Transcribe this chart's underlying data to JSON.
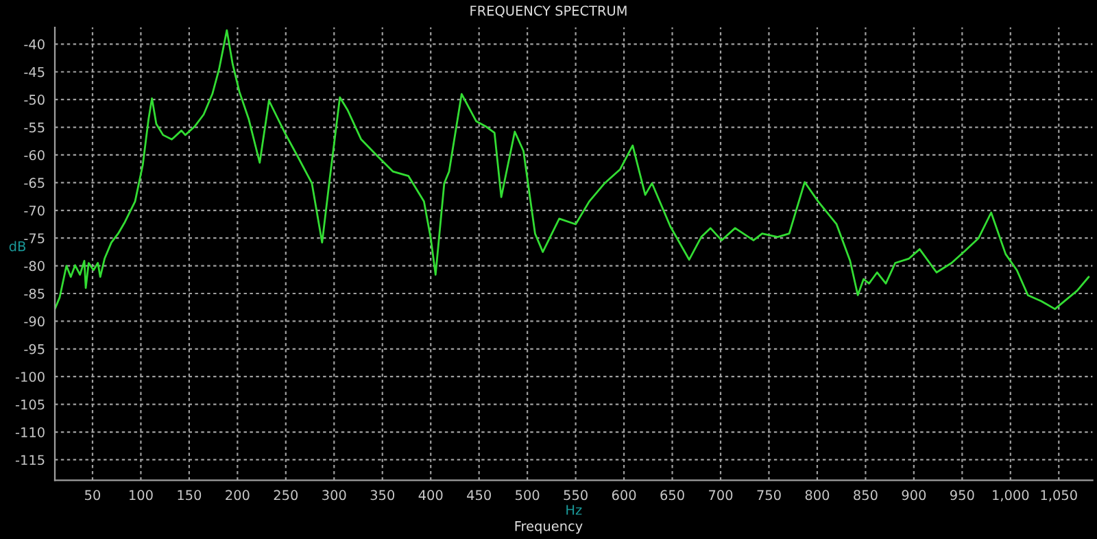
{
  "chart_data": {
    "type": "line",
    "title": "FREQUENCY SPECTRUM",
    "xlabel": "Hz",
    "ylabel": "dB",
    "annotations": [
      "Frequency"
    ],
    "xlim": [
      11,
      1085
    ],
    "ylim": [
      -118.7,
      -37
    ],
    "xticks": [
      50,
      100,
      150,
      200,
      250,
      300,
      350,
      400,
      450,
      500,
      550,
      600,
      650,
      700,
      750,
      800,
      850,
      900,
      950,
      {
        "value": 1000,
        "label": "1,000"
      },
      {
        "value": 1050,
        "label": "1,050"
      }
    ],
    "yticks": [
      -40,
      -45,
      -50,
      -55,
      -60,
      -65,
      -70,
      -75,
      -80,
      -85,
      -90,
      -95,
      -100,
      -105,
      -110,
      -115
    ],
    "grid": true,
    "legend": false,
    "marker": "none",
    "line_style": "solid",
    "series": [
      {
        "color": "#33dd33",
        "x": [
          11,
          16,
          23,
          27.5,
          32,
          37,
          41.5,
          43,
          46,
          51,
          55.5,
          58,
          62.5,
          69.5,
          76.5,
          83.5,
          94,
          102,
          108,
          111.5,
          116,
          123,
          132,
          142,
          146,
          156,
          165,
          174,
          181,
          189,
          195,
          202,
          211.6,
          223,
          232.6,
          249,
          263,
          277,
          287.6,
          295.5,
          306,
          314,
          328,
          342,
          361,
          377,
          393,
          400,
          405,
          414,
          419,
          432,
          447,
          456.5,
          466,
          473,
          487,
          496,
          508,
          516,
          533,
          550,
          564,
          580,
          596,
          609,
          622,
          629,
          648,
          667.5,
          680,
          689.5,
          701,
          715,
          734,
          743,
          759,
          771,
          787,
          801,
          820,
          834,
          842,
          848,
          853.6,
          862,
          871,
          880.7,
          895,
          906,
          923.5,
          939,
          953,
          967,
          980,
          995,
          1006.6,
          1018,
          1032,
          1046,
          1055,
          1069,
          1081
        ],
        "values": [
          -87.8,
          -85.7,
          -80,
          -82,
          -79.9,
          -81.6,
          -79.1,
          -84,
          -79.5,
          -80.8,
          -79.5,
          -82,
          -78.7,
          -75.8,
          -74.2,
          -72.1,
          -68.4,
          -61.8,
          -53.5,
          -49.8,
          -54.4,
          -56.4,
          -57.2,
          -55.6,
          -56.4,
          -54.8,
          -52.7,
          -49,
          -44.5,
          -37.5,
          -43.6,
          -48.6,
          -53.5,
          -61.4,
          -50.2,
          -56,
          -60.5,
          -65.1,
          -75.8,
          -64.3,
          -49.6,
          -51.9,
          -57.2,
          -59.7,
          -63,
          -63.8,
          -68.4,
          -75,
          -81.6,
          -65.1,
          -63,
          -49,
          -53.9,
          -54.8,
          -56,
          -67.6,
          -55.8,
          -59.3,
          -74.2,
          -77.5,
          -71.5,
          -72.5,
          -68.4,
          -65.1,
          -62.6,
          -58.3,
          -67.2,
          -65.1,
          -72.9,
          -78.9,
          -74.8,
          -73.2,
          -75.4,
          -73.2,
          -75.4,
          -74.2,
          -74.8,
          -74.2,
          -64.9,
          -68.4,
          -72.5,
          -79.1,
          -85.3,
          -82.4,
          -83.2,
          -81.2,
          -83.2,
          -79.5,
          -78.7,
          -77,
          -81.2,
          -79.5,
          -77.3,
          -75,
          -70.4,
          -77.9,
          -80.8,
          -85.3,
          -86.4,
          -87.8,
          -86.5,
          -84.5,
          -82
        ]
      }
    ]
  }
}
